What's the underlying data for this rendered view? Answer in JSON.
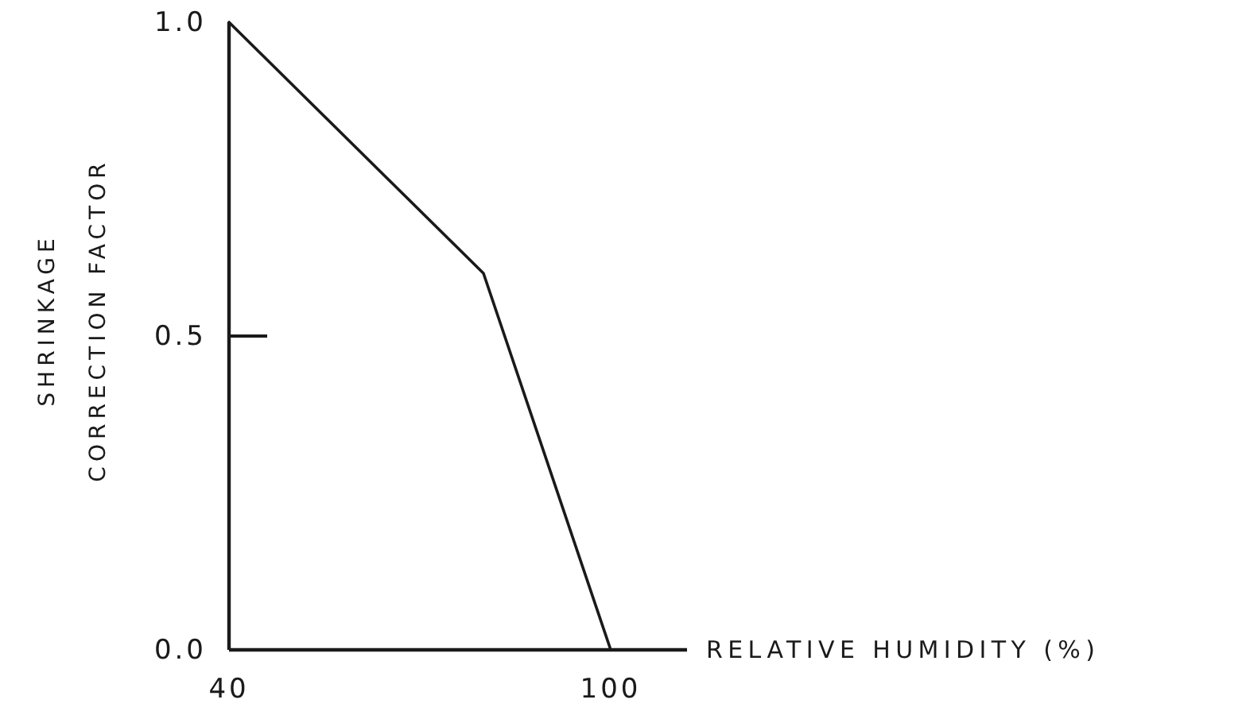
{
  "chart_data": {
    "type": "line",
    "xlabel": "RELATIVE HUMIDITY (%)",
    "ylabel": "SHRINKAGE CORRECTION FACTOR",
    "x": [
      40,
      80,
      100
    ],
    "series": [
      {
        "color": "#1a1a1a",
        "values": [
          1.0,
          0.6,
          0
        ]
      }
    ],
    "xlim": [
      40,
      112
    ],
    "ylim": [
      0,
      1
    ],
    "xticks": [
      40,
      100
    ],
    "yticks": [
      {
        "value": 0,
        "label": "0.0"
      },
      {
        "value": 0.5,
        "label": "0.5"
      },
      {
        "value": 1,
        "label": "1.0"
      }
    ],
    "line_style": "solid"
  }
}
